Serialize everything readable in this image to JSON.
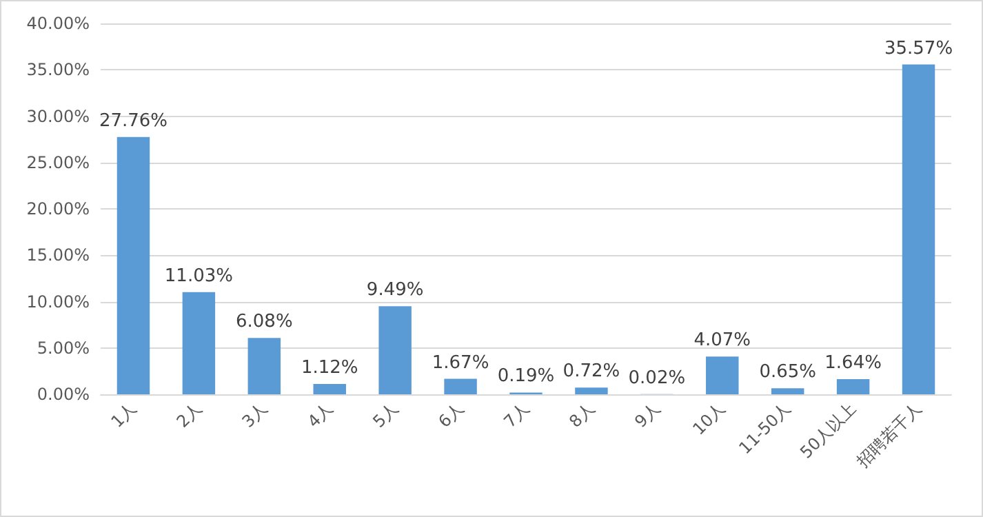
{
  "chart_data": {
    "type": "bar",
    "categories": [
      "1人",
      "2人",
      "3人",
      "4人",
      "5人",
      "6人",
      "7人",
      "8人",
      "9人",
      "10人",
      "11-50人",
      "50人以上",
      "招聘若干人"
    ],
    "values": [
      27.76,
      11.03,
      6.08,
      1.12,
      9.49,
      1.67,
      0.19,
      0.72,
      0.02,
      4.07,
      0.65,
      1.64,
      35.57
    ],
    "value_labels": [
      "27.76%",
      "11.03%",
      "6.08%",
      "1.12%",
      "9.49%",
      "1.67%",
      "0.19%",
      "0.72%",
      "0.02%",
      "4.07%",
      "0.65%",
      "1.64%",
      "35.57%"
    ],
    "color": "#5b9bd5",
    "ylim": [
      0,
      40
    ],
    "yticks": [
      {
        "value": 0,
        "label": "0.00%"
      },
      {
        "value": 5,
        "label": "5.00%"
      },
      {
        "value": 10,
        "label": "10.00%"
      },
      {
        "value": 15,
        "label": "15.00%"
      },
      {
        "value": 20,
        "label": "20.00%"
      },
      {
        "value": 25,
        "label": "25.00%"
      },
      {
        "value": 30,
        "label": "30.00%"
      },
      {
        "value": 35,
        "label": "35.00%"
      },
      {
        "value": 40,
        "label": "40.00%"
      }
    ],
    "grid": "y"
  }
}
